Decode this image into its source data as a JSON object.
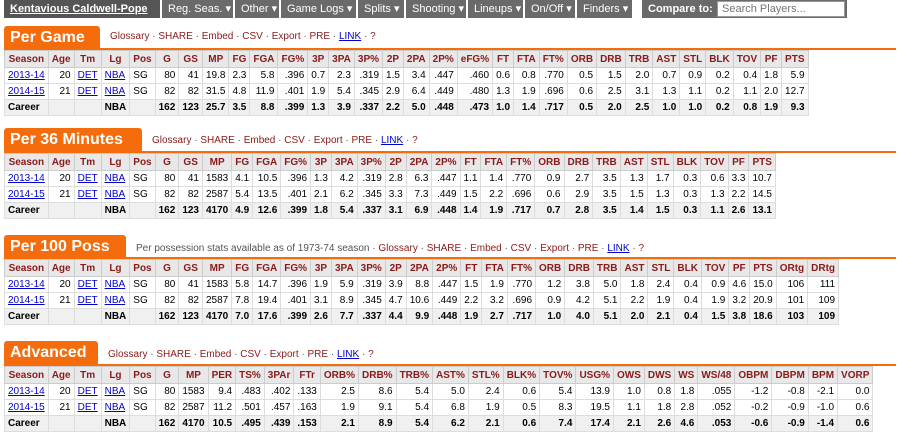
{
  "nav": {
    "player_name": "Kentavious Caldwell-Pope",
    "items": [
      "Reg. Seas. ▾",
      "Other ▾",
      "Game Logs ▾",
      "Splits ▾",
      "Shooting ▾",
      "Lineups ▾",
      "On/Off ▾",
      "Finders ▾"
    ],
    "compare_label": "Compare to:",
    "search_placeholder": "Search Players..."
  },
  "tools": {
    "glossary": "Glossary",
    "share": "SHARE",
    "embed": "Embed",
    "csv": "CSV",
    "export": "Export",
    "pre": "PRE",
    "link": "LINK",
    "q": "?",
    "per100_note": "Per possession stats available as of 1973-74 season"
  },
  "per_game": {
    "title": "Per Game",
    "headers": [
      "Season",
      "Age",
      "Tm",
      "Lg",
      "Pos",
      "G",
      "GS",
      "MP",
      "FG",
      "FGA",
      "FG%",
      "3P",
      "3PA",
      "3P%",
      "2P",
      "2PA",
      "2P%",
      "eFG%",
      "FT",
      "FTA",
      "FT%",
      "ORB",
      "DRB",
      "TRB",
      "AST",
      "STL",
      "BLK",
      "TOV",
      "PF",
      "PTS"
    ],
    "rows": [
      [
        "2013-14",
        "20",
        "DET",
        "NBA",
        "SG",
        "80",
        "41",
        "19.8",
        "2.3",
        "5.8",
        ".396",
        "0.7",
        "2.3",
        ".319",
        "1.5",
        "3.4",
        ".447",
        ".460",
        "0.6",
        "0.8",
        ".770",
        "0.5",
        "1.5",
        "2.0",
        "0.7",
        "0.9",
        "0.2",
        "0.4",
        "1.8",
        "5.9"
      ],
      [
        "2014-15",
        "21",
        "DET",
        "NBA",
        "SG",
        "82",
        "82",
        "31.5",
        "4.8",
        "11.9",
        ".401",
        "1.9",
        "5.4",
        ".345",
        "2.9",
        "6.4",
        ".449",
        ".480",
        "1.3",
        "1.9",
        ".696",
        "0.6",
        "2.5",
        "3.1",
        "1.3",
        "1.1",
        "0.2",
        "1.1",
        "2.0",
        "12.7"
      ],
      [
        "Career",
        "",
        "",
        "NBA",
        "",
        "162",
        "123",
        "25.7",
        "3.5",
        "8.8",
        ".399",
        "1.3",
        "3.9",
        ".337",
        "2.2",
        "5.0",
        ".448",
        ".473",
        "1.0",
        "1.4",
        ".717",
        "0.5",
        "2.0",
        "2.5",
        "1.0",
        "1.0",
        "0.2",
        "0.8",
        "1.9",
        "9.3"
      ]
    ]
  },
  "per_36": {
    "title": "Per 36 Minutes",
    "headers": [
      "Season",
      "Age",
      "Tm",
      "Lg",
      "Pos",
      "G",
      "GS",
      "MP",
      "FG",
      "FGA",
      "FG%",
      "3P",
      "3PA",
      "3P%",
      "2P",
      "2PA",
      "2P%",
      "FT",
      "FTA",
      "FT%",
      "ORB",
      "DRB",
      "TRB",
      "AST",
      "STL",
      "BLK",
      "TOV",
      "PF",
      "PTS"
    ],
    "rows": [
      [
        "2013-14",
        "20",
        "DET",
        "NBA",
        "SG",
        "80",
        "41",
        "1583",
        "4.1",
        "10.5",
        ".396",
        "1.3",
        "4.2",
        ".319",
        "2.8",
        "6.3",
        ".447",
        "1.1",
        "1.4",
        ".770",
        "0.9",
        "2.7",
        "3.5",
        "1.3",
        "1.7",
        "0.3",
        "0.6",
        "3.3",
        "10.7"
      ],
      [
        "2014-15",
        "21",
        "DET",
        "NBA",
        "SG",
        "82",
        "82",
        "2587",
        "5.4",
        "13.5",
        ".401",
        "2.1",
        "6.2",
        ".345",
        "3.3",
        "7.3",
        ".449",
        "1.5",
        "2.2",
        ".696",
        "0.6",
        "2.9",
        "3.5",
        "1.5",
        "1.3",
        "0.3",
        "1.3",
        "2.2",
        "14.5"
      ],
      [
        "Career",
        "",
        "",
        "NBA",
        "",
        "162",
        "123",
        "4170",
        "4.9",
        "12.6",
        ".399",
        "1.8",
        "5.4",
        ".337",
        "3.1",
        "6.9",
        ".448",
        "1.4",
        "1.9",
        ".717",
        "0.7",
        "2.8",
        "3.5",
        "1.4",
        "1.5",
        "0.3",
        "1.1",
        "2.6",
        "13.1"
      ]
    ]
  },
  "per_100": {
    "title": "Per 100 Poss",
    "headers": [
      "Season",
      "Age",
      "Tm",
      "Lg",
      "Pos",
      "G",
      "GS",
      "MP",
      "FG",
      "FGA",
      "FG%",
      "3P",
      "3PA",
      "3P%",
      "2P",
      "2PA",
      "2P%",
      "FT",
      "FTA",
      "FT%",
      "ORB",
      "DRB",
      "TRB",
      "AST",
      "STL",
      "BLK",
      "TOV",
      "PF",
      "PTS",
      "ORtg",
      "DRtg"
    ],
    "rows": [
      [
        "2013-14",
        "20",
        "DET",
        "NBA",
        "SG",
        "80",
        "41",
        "1583",
        "5.8",
        "14.7",
        ".396",
        "1.9",
        "5.9",
        ".319",
        "3.9",
        "8.8",
        ".447",
        "1.5",
        "1.9",
        ".770",
        "1.2",
        "3.8",
        "5.0",
        "1.8",
        "2.4",
        "0.4",
        "0.9",
        "4.6",
        "15.0",
        "106",
        "111"
      ],
      [
        "2014-15",
        "21",
        "DET",
        "NBA",
        "SG",
        "82",
        "82",
        "2587",
        "7.8",
        "19.4",
        ".401",
        "3.1",
        "8.9",
        ".345",
        "4.7",
        "10.6",
        ".449",
        "2.2",
        "3.2",
        ".696",
        "0.9",
        "4.2",
        "5.1",
        "2.2",
        "1.9",
        "0.4",
        "1.9",
        "3.2",
        "20.9",
        "101",
        "109"
      ],
      [
        "Career",
        "",
        "",
        "NBA",
        "",
        "162",
        "123",
        "4170",
        "7.0",
        "17.6",
        ".399",
        "2.6",
        "7.7",
        ".337",
        "4.4",
        "9.9",
        ".448",
        "1.9",
        "2.7",
        ".717",
        "1.0",
        "4.0",
        "5.1",
        "2.0",
        "2.1",
        "0.4",
        "1.5",
        "3.8",
        "18.6",
        "103",
        "109"
      ]
    ]
  },
  "advanced": {
    "title": "Advanced",
    "headers": [
      "Season",
      "Age",
      "Tm",
      "Lg",
      "Pos",
      "G",
      "MP",
      "PER",
      "TS%",
      "3PAr",
      "FTr",
      "ORB%",
      "DRB%",
      "TRB%",
      "AST%",
      "STL%",
      "BLK%",
      "TOV%",
      "USG%",
      "OWS",
      "DWS",
      "WS",
      "WS/48",
      "OBPM",
      "DBPM",
      "BPM",
      "VORP"
    ],
    "rows": [
      [
        "2013-14",
        "20",
        "DET",
        "NBA",
        "SG",
        "80",
        "1583",
        "9.4",
        ".483",
        ".402",
        ".133",
        "2.5",
        "8.6",
        "5.4",
        "5.0",
        "2.4",
        "0.6",
        "5.4",
        "13.9",
        "1.0",
        "0.8",
        "1.8",
        ".055",
        "-1.2",
        "-0.8",
        "-2.1",
        "0.0"
      ],
      [
        "2014-15",
        "21",
        "DET",
        "NBA",
        "SG",
        "82",
        "2587",
        "11.2",
        ".501",
        ".457",
        ".163",
        "1.9",
        "9.1",
        "5.4",
        "6.8",
        "1.9",
        "0.5",
        "8.3",
        "19.5",
        "1.1",
        "1.8",
        "2.8",
        ".052",
        "-0.2",
        "-0.9",
        "-1.0",
        "0.6"
      ],
      [
        "Career",
        "",
        "",
        "NBA",
        "",
        "162",
        "4170",
        "10.5",
        ".495",
        ".439",
        ".153",
        "2.1",
        "8.9",
        "5.4",
        "6.2",
        "2.1",
        "0.6",
        "7.4",
        "17.4",
        "2.1",
        "2.6",
        "4.6",
        ".053",
        "-0.6",
        "-0.9",
        "-1.4",
        "0.6"
      ]
    ]
  }
}
